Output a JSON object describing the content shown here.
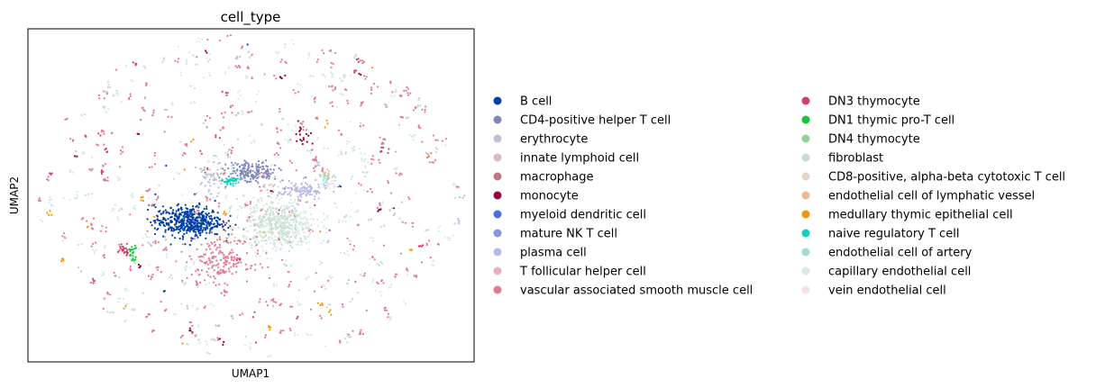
{
  "chart_data": {
    "type": "scatter",
    "title": "cell_type",
    "xlabel": "UMAP1",
    "ylabel": "UMAP2",
    "ticks": "none",
    "legend_placement": "right",
    "categories": [
      {
        "name": "B cell",
        "color": "#023fa5"
      },
      {
        "name": "CD4-positive helper T cell",
        "color": "#7d87b9"
      },
      {
        "name": "erythrocyte",
        "color": "#bec1d4"
      },
      {
        "name": "innate lymphoid cell",
        "color": "#d6bcc0"
      },
      {
        "name": "macrophage",
        "color": "#bb7784"
      },
      {
        "name": "monocyte",
        "color": "#8e063b"
      },
      {
        "name": "myeloid dendritic cell",
        "color": "#4a6fe3"
      },
      {
        "name": "mature NK T cell",
        "color": "#8595e1"
      },
      {
        "name": "plasma cell",
        "color": "#b5bbe3"
      },
      {
        "name": "T follicular helper cell",
        "color": "#e6afb9"
      },
      {
        "name": "vascular associated smooth muscle cell",
        "color": "#e07b91"
      },
      {
        "name": "DN3 thymocyte",
        "color": "#d33f6a"
      },
      {
        "name": "DN1 thymic pro-T cell",
        "color": "#11c638"
      },
      {
        "name": "DN4 thymocyte",
        "color": "#8dd593"
      },
      {
        "name": "fibroblast",
        "color": "#c6dec7"
      },
      {
        "name": "CD8-positive, alpha-beta cytotoxic T cell",
        "color": "#ead3c6"
      },
      {
        "name": "endothelial cell of lymphatic vessel",
        "color": "#f0b98d"
      },
      {
        "name": "medullary thymic epithelial cell",
        "color": "#ef9708"
      },
      {
        "name": "naive regulatory T cell",
        "color": "#0fcfc0"
      },
      {
        "name": "endothelial cell of artery",
        "color": "#9cded6"
      },
      {
        "name": "capillary endothelial cell",
        "color": "#d5eae7"
      },
      {
        "name": "vein endothelial cell",
        "color": "#f3e1eb"
      }
    ],
    "clusters": [
      {
        "category": "B cell",
        "center": [
          -2.8,
          -1.1
        ],
        "spread": [
          0.75,
          0.32
        ],
        "count": 480
      },
      {
        "category": "capillary endothelial cell",
        "center": [
          1.3,
          -1.25
        ],
        "spread": [
          0.8,
          0.55
        ],
        "count": 380
      },
      {
        "category": "fibroblast",
        "center": [
          1.2,
          -1.2
        ],
        "spread": [
          0.7,
          0.5
        ],
        "count": 180
      },
      {
        "category": "vascular associated smooth muscle cell",
        "center": [
          -1.4,
          -2.7
        ],
        "spread": [
          0.7,
          0.45
        ],
        "count": 170
      },
      {
        "category": "CD4-positive helper T cell",
        "center": [
          0.1,
          0.95
        ],
        "spread": [
          0.55,
          0.22
        ],
        "count": 160
      },
      {
        "category": "plasma cell",
        "center": [
          2.3,
          0.2
        ],
        "spread": [
          0.55,
          0.2
        ],
        "count": 110
      },
      {
        "category": "erythrocyte",
        "center": [
          -1.85,
          0.7
        ],
        "spread": [
          0.3,
          0.35
        ],
        "count": 60
      },
      {
        "category": "naive regulatory T cell",
        "center": [
          -0.9,
          0.6
        ],
        "spread": [
          0.18,
          0.08
        ],
        "count": 40
      },
      {
        "category": "endothelial cell of artery",
        "center": [
          3.4,
          0.7
        ],
        "spread": [
          0.15,
          0.12
        ],
        "count": 25
      },
      {
        "category": "vein endothelial cell",
        "center": [
          3.5,
          0.4
        ],
        "spread": [
          0.2,
          0.1
        ],
        "count": 25
      },
      {
        "category": "DN1 thymic pro-T cell",
        "center": [
          -5.3,
          -2.4
        ],
        "spread": [
          0.1,
          0.15
        ],
        "count": 22
      },
      {
        "category": "DN3 thymocyte",
        "center": [
          -5.7,
          -2.25
        ],
        "spread": [
          0.15,
          0.12
        ],
        "count": 25
      },
      {
        "category": "monocyte",
        "center": [
          2.3,
          2.6
        ],
        "spread": [
          0.2,
          0.3
        ],
        "count": 18
      },
      {
        "category": "endothelial cell of lymphatic vessel",
        "center": [
          3.5,
          0.9
        ],
        "spread": [
          0.15,
          0.1
        ],
        "count": 10
      },
      {
        "category": "mature NK T cell",
        "center": [
          -0.3,
          1.3
        ],
        "spread": [
          0.25,
          0.1
        ],
        "count": 10
      },
      {
        "category": "T follicular helper cell",
        "center": [
          0.6,
          0.5
        ],
        "spread": [
          0.3,
          0.2
        ],
        "count": 12
      }
    ],
    "scattered": {
      "count": 560,
      "spread_radius": 9.5,
      "weights": {
        "vascular associated smooth muscle cell": 45,
        "capillary endothelial cell": 28,
        "fibroblast": 12,
        "DN3 thymocyte": 5,
        "medullary thymic epithelial cell": 3,
        "plasma cell": 3,
        "erythrocyte": 2,
        "monocyte": 2,
        "B cell": 1
      }
    },
    "xlim": [
      -10,
      10
    ],
    "ylim": [
      -7,
      7
    ]
  }
}
